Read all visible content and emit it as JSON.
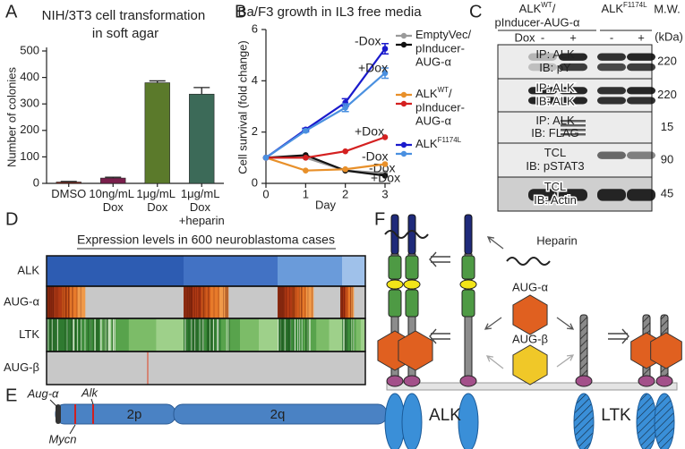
{
  "panel_labels": [
    "A",
    "B",
    "C",
    "D",
    "E",
    "F"
  ],
  "chart_data": [
    {
      "type": "bar",
      "title": "NIH/3T3 cell transformation in soft agar",
      "ylabel": "Number of colonies",
      "categories": [
        "DMSO",
        "10ng/mL Dox",
        "1μg/mL Dox",
        "1μg/mL Dox +heparin"
      ],
      "values": [
        5,
        20,
        380,
        337
      ],
      "errors": [
        2,
        3,
        7,
        25
      ],
      "colors": [
        "#8e2c1c",
        "#7a1f4c",
        "#5b7a2b",
        "#3c6a58"
      ],
      "ylim": [
        0,
        500
      ],
      "yticks": [
        0,
        100,
        200,
        300,
        400,
        500
      ]
    },
    {
      "type": "line",
      "title": "Ba/F3 growth in IL3 free media",
      "xlabel": "Day",
      "ylabel": "Cell survival (fold change)",
      "x": [
        0,
        1,
        2,
        3
      ],
      "xlim": [
        0,
        3
      ],
      "xticks": [
        0,
        1,
        2,
        3
      ],
      "ylim": [
        0,
        6
      ],
      "yticks": [
        0,
        2,
        4,
        6
      ],
      "series": [
        {
          "name": "-Dox",
          "color": "#9a9a9a",
          "values": [
            1,
            1.0,
            0.5,
            0.4
          ]
        },
        {
          "name": "+Dox",
          "color": "#111111",
          "values": [
            1,
            1.1,
            0.5,
            0.3
          ]
        },
        {
          "name": "-Dox",
          "color": "#e8902a",
          "values": [
            1,
            0.5,
            0.55,
            0.75
          ]
        },
        {
          "name": "+Dox",
          "color": "#d42020",
          "values": [
            1,
            1.0,
            1.25,
            1.8
          ]
        },
        {
          "name": "-Dox",
          "color": "#1a1acc",
          "values": [
            1,
            2.1,
            3.15,
            5.25
          ],
          "errors": [
            0,
            0.05,
            0.15,
            0.2
          ]
        },
        {
          "name": "+Dox",
          "color": "#4a90e0",
          "values": [
            1,
            2.05,
            2.95,
            4.3
          ],
          "errors": [
            0,
            0.05,
            0.15,
            0.2
          ]
        }
      ],
      "legend": [
        {
          "label": "EmptyVec/",
          "more": [
            "pInducer-",
            "AUG-α"
          ],
          "series": [
            0,
            1
          ]
        },
        {
          "label": "ALK",
          "sup": "WT",
          "suffix": "/",
          "more": [
            "pInducer-",
            "AUG-α"
          ],
          "series": [
            2,
            3
          ]
        },
        {
          "label": "ALK",
          "sup": "F1174L",
          "series": [
            4,
            5
          ]
        }
      ]
    }
  ],
  "blot": {
    "groups": [
      {
        "label": "ALK",
        "sup": "WT",
        "suffix": "/",
        "more": "pInducer-AUG-α"
      },
      {
        "label": "ALK",
        "sup": "F1174L"
      }
    ],
    "mw": "M.W.",
    "unit": "(kDa)",
    "dox": "Dox",
    "lanes": [
      "-",
      "+",
      "-",
      "+"
    ],
    "rows": [
      {
        "lines": [
          "IP: ALK",
          "IB: pY"
        ],
        "mw": "220"
      },
      {
        "lines": [
          "IP: ALK",
          "IB: ALK"
        ],
        "mw": "220"
      },
      {
        "lines": [
          "IP: ALK",
          "IB: FLAG"
        ],
        "mw": "15"
      },
      {
        "lines": [
          "TCL",
          "IB: pSTAT3"
        ],
        "mw": "90"
      },
      {
        "lines": [
          "TCL",
          "IB: Actin"
        ],
        "mw": "45"
      }
    ]
  },
  "heatmap": {
    "title": "Expression levels in 600 neuroblastoma cases",
    "rows": [
      "ALK",
      "AUG-α",
      "LTK",
      "AUG-β"
    ]
  },
  "chromosome": {
    "aug_a": "Aug-α",
    "alk": "Alk",
    "mycn": "Mycn",
    "p": "2p",
    "q": "2q"
  },
  "schematic": {
    "heparin": "Heparin",
    "aug_a": "AUG-α",
    "aug_b": "AUG-β",
    "alk": "ALK",
    "ltk": "LTK"
  }
}
